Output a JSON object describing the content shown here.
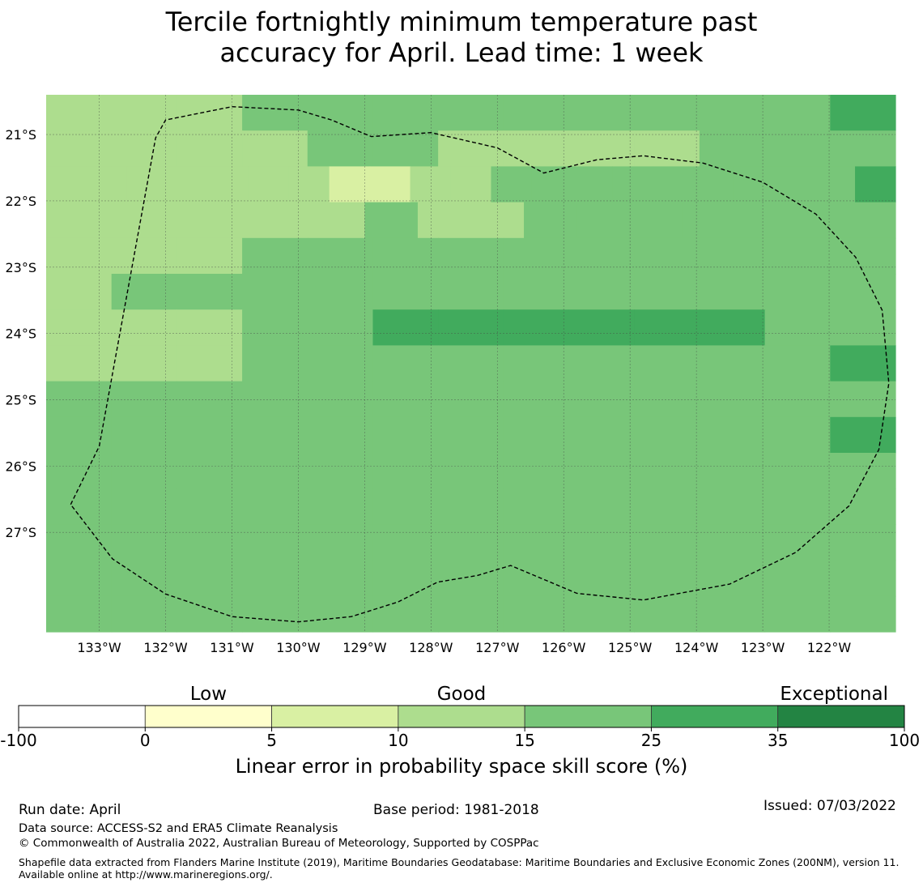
{
  "title": {
    "line1": "Tercile fortnightly minimum temperature past",
    "line2": "accuracy for April. Lead time: 1 week"
  },
  "map": {
    "lon_range": [
      -133.8,
      -121.0
    ],
    "lat_range": [
      -28.5,
      -20.4
    ],
    "lon_ticks": [
      {
        "value": -133,
        "label": "133°W"
      },
      {
        "value": -132,
        "label": "132°W"
      },
      {
        "value": -131,
        "label": "131°W"
      },
      {
        "value": -130,
        "label": "130°W"
      },
      {
        "value": -129,
        "label": "129°W"
      },
      {
        "value": -128,
        "label": "128°W"
      },
      {
        "value": -127,
        "label": "127°W"
      },
      {
        "value": -126,
        "label": "126°W"
      },
      {
        "value": -125,
        "label": "125°W"
      },
      {
        "value": -124,
        "label": "124°W"
      },
      {
        "value": -123,
        "label": "123°W"
      },
      {
        "value": -122,
        "label": "122°W"
      }
    ],
    "lat_ticks": [
      {
        "value": -21,
        "label": "21°S"
      },
      {
        "value": -22,
        "label": "22°S"
      },
      {
        "value": -23,
        "label": "23°S"
      },
      {
        "value": -24,
        "label": "24°S"
      },
      {
        "value": -25,
        "label": "25°S"
      },
      {
        "value": -26,
        "label": "26°S"
      },
      {
        "value": -27,
        "label": "27°S"
      }
    ],
    "grid": true,
    "skill_classes": [
      "#d9f0a3",
      "#addd8e",
      "#78c679",
      "#41ab5d"
    ],
    "skill_grid": [
      "1112222222223",
      "1111221111222",
      "111111100112222222223",
      "1111112112222222",
      "1112222222222",
      "1222222222222",
      "1112233333322",
      "1112222222223",
      "2222222222222",
      "2222222222223",
      "2222222222222",
      "2222222222222",
      "2222222222222",
      "2222222222222",
      "2222222222222"
    ],
    "eez_boundary": [
      [
        -133.43,
        -26.58
      ],
      [
        -133.0,
        -25.7
      ],
      [
        -132.15,
        -21.05
      ],
      [
        -132.0,
        -20.78
      ],
      [
        -131.0,
        -20.58
      ],
      [
        -130.0,
        -20.63
      ],
      [
        -129.5,
        -20.78
      ],
      [
        -128.9,
        -21.03
      ],
      [
        -128.0,
        -20.97
      ],
      [
        -127.0,
        -21.2
      ],
      [
        -126.3,
        -21.58
      ],
      [
        -125.5,
        -21.38
      ],
      [
        -124.8,
        -21.32
      ],
      [
        -123.9,
        -21.43
      ],
      [
        -123.0,
        -21.72
      ],
      [
        -122.2,
        -22.2
      ],
      [
        -121.6,
        -22.85
      ],
      [
        -121.2,
        -23.65
      ],
      [
        -121.1,
        -24.75
      ],
      [
        -121.25,
        -25.75
      ],
      [
        -121.7,
        -26.6
      ],
      [
        -122.5,
        -27.3
      ],
      [
        -123.5,
        -27.78
      ],
      [
        -124.8,
        -28.02
      ],
      [
        -125.8,
        -27.92
      ],
      [
        -126.8,
        -27.5
      ],
      [
        -127.3,
        -27.65
      ],
      [
        -127.9,
        -27.75
      ],
      [
        -128.5,
        -28.05
      ],
      [
        -129.2,
        -28.27
      ],
      [
        -130.0,
        -28.35
      ],
      [
        -131.0,
        -28.27
      ],
      [
        -132.0,
        -27.93
      ],
      [
        -132.8,
        -27.4
      ],
      [
        -133.43,
        -26.58
      ]
    ]
  },
  "colorbar": {
    "category_labels": [
      "Low",
      "Good",
      "Exceptional"
    ],
    "bounds": [
      "-100",
      "0",
      "5",
      "10",
      "15",
      "25",
      "35",
      "100"
    ],
    "colors": [
      "#ffffff",
      "#ffffcc",
      "#d9f0a3",
      "#addd8e",
      "#78c679",
      "#41ab5d",
      "#238443"
    ],
    "label": "Linear error in probability space skill score (%)"
  },
  "footer": {
    "run_date": "Run date: April",
    "base_period": "Base period: 1981-2018",
    "issued": "Issued: 07/03/2022",
    "data_source": "Data source: ACCESS-S2 and ERA5 Climate Reanalysis",
    "copyright": "© Commonwealth of Australia 2022, Australian Bureau of Meteorology, Supported by COSPPac",
    "shapefile": "Shapefile data extracted from Flanders Marine Institute (2019), Maritime Boundaries Geodatabase: Maritime Boundaries and Exclusive Economic Zones (200NM), version 11. Available online at http://www.marineregions.org/."
  }
}
